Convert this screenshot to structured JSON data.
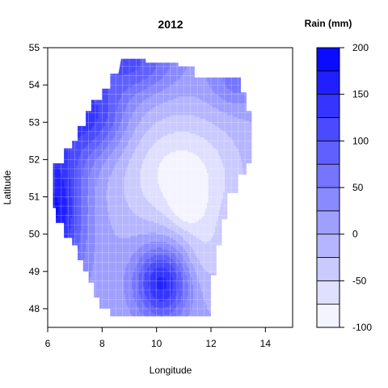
{
  "chart_data": {
    "type": "heatmap",
    "title": "2012",
    "xlabel": "Longitude",
    "ylabel": "Latitude",
    "xlim": [
      6,
      15
    ],
    "ylim": [
      47.5,
      55
    ],
    "xticks": [
      6,
      8,
      10,
      12,
      14
    ],
    "yticks": [
      48,
      49,
      50,
      51,
      52,
      53,
      54,
      55
    ],
    "grid": false,
    "colorbar": {
      "title": "Rain (mm)",
      "min": -100,
      "max": 200,
      "step": 25,
      "ticks": [
        -100,
        -50,
        0,
        50,
        100,
        150,
        200
      ],
      "color_low": "#ffffff",
      "color_high": "#0000ff"
    },
    "outline": [
      [
        8.7,
        54.7
      ],
      [
        9.6,
        54.7
      ],
      [
        9.6,
        54.6
      ],
      [
        10.8,
        54.6
      ],
      [
        10.8,
        54.5
      ],
      [
        11.4,
        54.5
      ],
      [
        11.4,
        54.2
      ],
      [
        12.0,
        54.2
      ],
      [
        12.0,
        54.2
      ],
      [
        13.1,
        54.2
      ],
      [
        13.1,
        53.8
      ],
      [
        13.3,
        53.8
      ],
      [
        13.3,
        53.3
      ],
      [
        13.5,
        53.3
      ],
      [
        13.5,
        51.9
      ],
      [
        13.3,
        51.9
      ],
      [
        13.3,
        51.6
      ],
      [
        13.0,
        51.6
      ],
      [
        13.0,
        51.1
      ],
      [
        12.6,
        51.1
      ],
      [
        12.6,
        50.4
      ],
      [
        12.4,
        50.4
      ],
      [
        12.4,
        49.7
      ],
      [
        12.2,
        49.7
      ],
      [
        12.2,
        48.9
      ],
      [
        12.0,
        48.9
      ],
      [
        12.0,
        48.4
      ],
      [
        12.0,
        47.8
      ],
      [
        10.2,
        47.8
      ],
      [
        9.4,
        47.8
      ],
      [
        9.3,
        47.8
      ],
      [
        8.3,
        47.8
      ],
      [
        8.3,
        48.0
      ],
      [
        7.9,
        48.0
      ],
      [
        7.9,
        48.3
      ],
      [
        7.7,
        48.3
      ],
      [
        7.7,
        48.7
      ],
      [
        7.5,
        48.7
      ],
      [
        7.5,
        49.0
      ],
      [
        7.3,
        49.0
      ],
      [
        7.3,
        49.3
      ],
      [
        7.1,
        49.3
      ],
      [
        7.1,
        49.7
      ],
      [
        6.9,
        49.7
      ],
      [
        6.9,
        49.9
      ],
      [
        6.6,
        49.9
      ],
      [
        6.6,
        50.3
      ],
      [
        6.3,
        50.3
      ],
      [
        6.3,
        50.7
      ],
      [
        6.2,
        50.7
      ],
      [
        6.2,
        51.9
      ],
      [
        6.6,
        51.9
      ],
      [
        6.6,
        52.3
      ],
      [
        6.9,
        52.3
      ],
      [
        6.9,
        52.5
      ],
      [
        7.1,
        52.5
      ],
      [
        7.1,
        52.9
      ],
      [
        7.4,
        52.9
      ],
      [
        7.4,
        53.3
      ],
      [
        7.6,
        53.3
      ],
      [
        7.6,
        53.6
      ],
      [
        8.0,
        53.6
      ],
      [
        8.0,
        53.9
      ],
      [
        8.3,
        53.9
      ],
      [
        8.3,
        54.3
      ],
      [
        8.6,
        54.3
      ]
    ],
    "field": {
      "base": 5,
      "sources": [
        {
          "lon": 6.2,
          "lat": 50.7,
          "amp": 175,
          "sx": 0.8,
          "sy": 1.6
        },
        {
          "lon": 7.6,
          "lat": 53.2,
          "amp": 120,
          "sx": 0.9,
          "sy": 0.8
        },
        {
          "lon": 9.2,
          "lat": 54.6,
          "amp": 95,
          "sx": 1.1,
          "sy": 0.6
        },
        {
          "lon": 13.0,
          "lat": 54.1,
          "amp": 60,
          "sx": 0.8,
          "sy": 0.5
        },
        {
          "lon": 10.2,
          "lat": 48.7,
          "amp": 155,
          "sx": 0.7,
          "sy": 0.7
        },
        {
          "lon": 10.9,
          "lat": 51.6,
          "amp": -95,
          "sx": 1.5,
          "sy": 1.1
        },
        {
          "lon": 11.1,
          "lat": 50.8,
          "amp": -40,
          "sx": 0.4,
          "sy": 0.4
        },
        {
          "lon": 11.8,
          "lat": 49.5,
          "amp": -40,
          "sx": 0.7,
          "sy": 0.9
        }
      ]
    }
  }
}
